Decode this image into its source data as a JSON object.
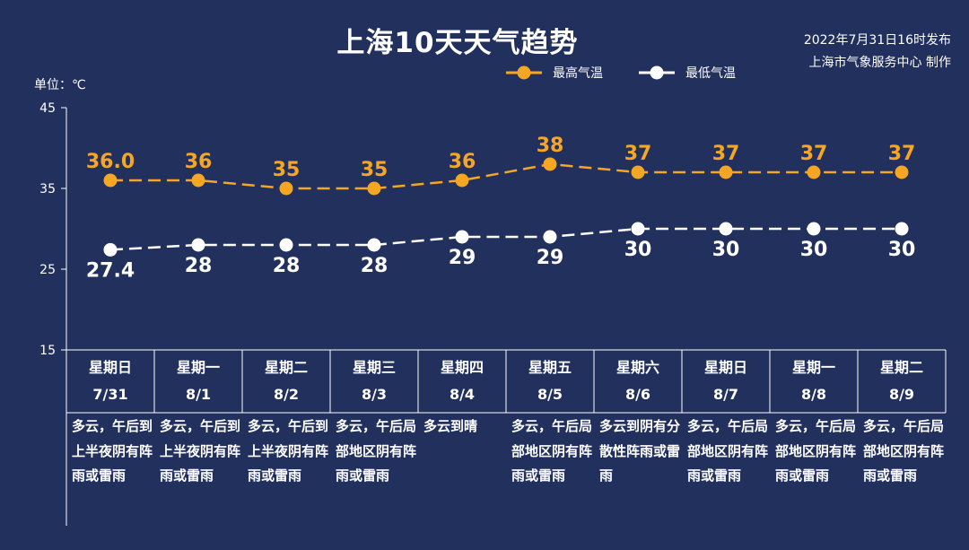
{
  "title": "上海10天天气趋势",
  "publish": {
    "line1": "2022年7月31日16时发布",
    "line2": "上海市气象服务中心 制作"
  },
  "unit_label": "单位：℃",
  "colors": {
    "background": "#22305e",
    "high": "#f5a623",
    "low": "#ffffff",
    "axis": "#ffffff"
  },
  "days": [
    {
      "weekday": "星期日",
      "date": "7/31",
      "desc": "多云，午后到上半夜阴有阵雨或雷雨"
    },
    {
      "weekday": "星期一",
      "date": "8/1",
      "desc": "多云，午后到上半夜阴有阵雨或雷雨"
    },
    {
      "weekday": "星期二",
      "date": "8/2",
      "desc": "多云，午后到上半夜阴有阵雨或雷雨"
    },
    {
      "weekday": "星期三",
      "date": "8/3",
      "desc": "多云，午后局部地区阴有阵雨或雷雨"
    },
    {
      "weekday": "星期四",
      "date": "8/4",
      "desc": "多云到晴"
    },
    {
      "weekday": "星期五",
      "date": "8/5",
      "desc": "多云，午后局部地区阴有阵雨或雷雨"
    },
    {
      "weekday": "星期六",
      "date": "8/6",
      "desc": "多云到阴有分散性阵雨或雷雨"
    },
    {
      "weekday": "星期日",
      "date": "8/7",
      "desc": "多云，午后局部地区阴有阵雨或雷雨"
    },
    {
      "weekday": "星期一",
      "date": "8/8",
      "desc": "多云，午后局部地区阴有阵雨或雷雨"
    },
    {
      "weekday": "星期二",
      "date": "8/9",
      "desc": "多云，午后局部地区阴有阵雨或雷雨"
    }
  ],
  "chart_data": {
    "type": "line",
    "title": "上海10天天气趋势",
    "ylabel": "单位：℃",
    "ylim": [
      15,
      45
    ],
    "yticks": [
      "15",
      "25",
      "35",
      "45"
    ],
    "categories": [
      "7/31",
      "8/1",
      "8/2",
      "8/3",
      "8/4",
      "8/5",
      "8/6",
      "8/7",
      "8/8",
      "8/9"
    ],
    "grid": false,
    "legend": "top",
    "series": [
      {
        "name": "最高气温",
        "values": [
          36.0,
          36,
          35,
          35,
          36,
          38,
          37,
          37,
          37,
          37
        ],
        "labels": [
          "36.0",
          "36",
          "35",
          "35",
          "36",
          "38",
          "37",
          "37",
          "37",
          "37"
        ]
      },
      {
        "name": "最低气温",
        "values": [
          27.4,
          28,
          28,
          28,
          29,
          29,
          30,
          30,
          30,
          30
        ],
        "labels": [
          "27.4",
          "28",
          "28",
          "28",
          "29",
          "29",
          "30",
          "30",
          "30",
          "30"
        ]
      }
    ]
  }
}
